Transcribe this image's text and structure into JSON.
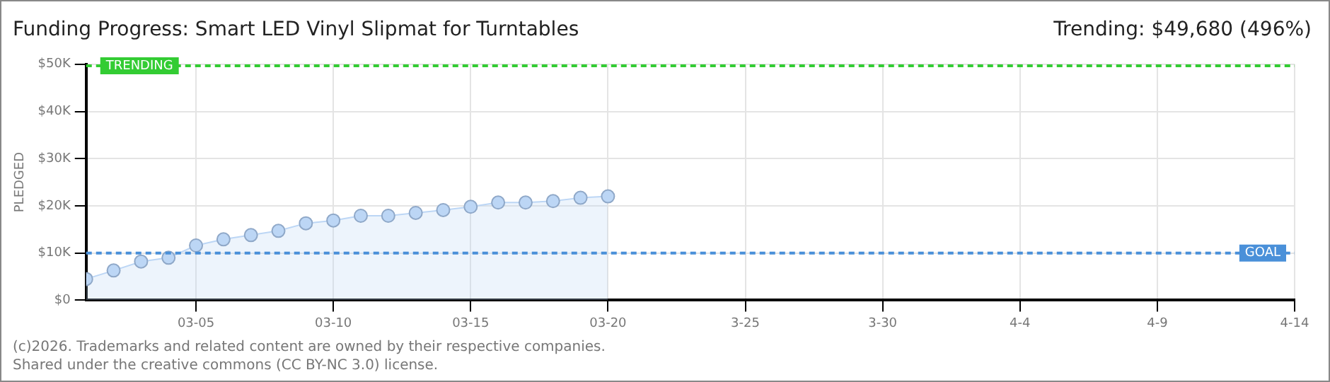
{
  "chart_data": {
    "type": "area",
    "title": "Funding Progress: Smart LED Vinyl Slipmat for Turntables",
    "subtitle": "Trending: $49,680 (496%)",
    "ylabel": "PLEDGED",
    "x": [
      "2026-03-01",
      "2026-03-02",
      "2026-03-03",
      "2026-03-04",
      "2026-03-05",
      "2026-03-06",
      "2026-03-07",
      "2026-03-08",
      "2026-03-09",
      "2026-03-10",
      "2026-03-11",
      "2026-03-12",
      "2026-03-13",
      "2026-03-14",
      "2026-03-15",
      "2026-03-16",
      "2026-03-17",
      "2026-03-18",
      "2026-03-19",
      "2026-03-20"
    ],
    "series": [
      {
        "color": "#bcd6f5",
        "values": [
          4500,
          6300,
          8200,
          9000,
          11600,
          12900,
          13800,
          14700,
          16300,
          16900,
          17900,
          17900,
          18500,
          19100,
          19800,
          20700,
          20700,
          21000,
          21700,
          22000
        ]
      }
    ],
    "xlim": [
      "2026-03-01",
      "2026-04-14"
    ],
    "xticks": [
      {
        "value": "2026-03-05",
        "label": "03-05"
      },
      {
        "value": "2026-03-10",
        "label": "03-10"
      },
      {
        "value": "2026-03-15",
        "label": "03-15"
      },
      {
        "value": "2026-03-20",
        "label": "03-20"
      },
      {
        "value": "2026-03-25",
        "label": "3-25"
      },
      {
        "value": "2026-03-30",
        "label": "3-30"
      },
      {
        "value": "2026-04-04",
        "label": "4-4"
      },
      {
        "value": "2026-04-09",
        "label": "4-9"
      },
      {
        "value": "2026-04-14",
        "label": "4-14"
      }
    ],
    "ylim": [
      0,
      50000
    ],
    "yticks": [
      {
        "value": 0,
        "label": "$0"
      },
      {
        "value": 10000,
        "label": "$10K"
      },
      {
        "value": 20000,
        "label": "$20K"
      },
      {
        "value": 30000,
        "label": "$30K"
      },
      {
        "value": 40000,
        "label": "$40K"
      },
      {
        "value": 50000,
        "label": "$50K"
      }
    ],
    "ref_lines": [
      {
        "axis": "y",
        "value": 49680,
        "label": "TRENDING",
        "color": "#33cc33",
        "line_style": "dashed"
      },
      {
        "axis": "y",
        "value": 10000,
        "label": "GOAL",
        "color": "#4a90d9",
        "line_style": "dashed"
      }
    ],
    "grid": true,
    "marker": "circle",
    "line_style": "solid",
    "legend": false,
    "annotations": [
      "(c)2026. Trademarks and related content are owned by their respective companies.",
      "Shared under the creative commons (CC BY-NC 3.0) license."
    ]
  }
}
